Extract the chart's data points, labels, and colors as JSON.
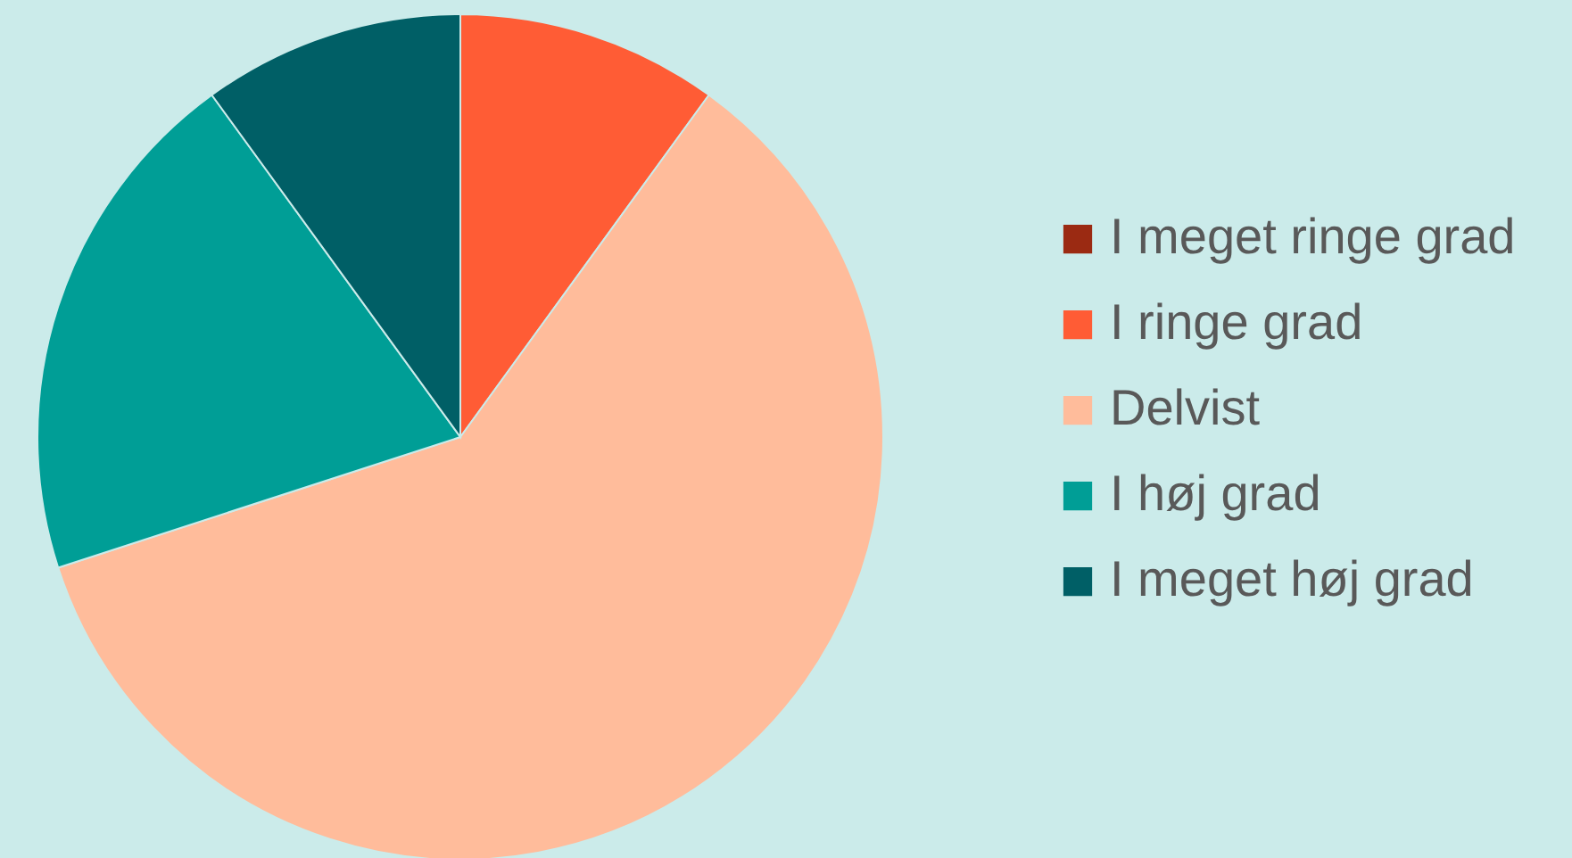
{
  "chart_data": {
    "type": "pie",
    "categories": [
      "I meget ringe grad",
      "I ringe grad",
      "Delvist",
      "I høj grad",
      "I meget høj grad"
    ],
    "values": [
      0,
      10,
      60,
      20,
      10
    ],
    "colors": [
      "#9b2a12",
      "#ff5c35",
      "#ffbc9b",
      "#009e96",
      "#005f66"
    ],
    "legend": "right"
  }
}
